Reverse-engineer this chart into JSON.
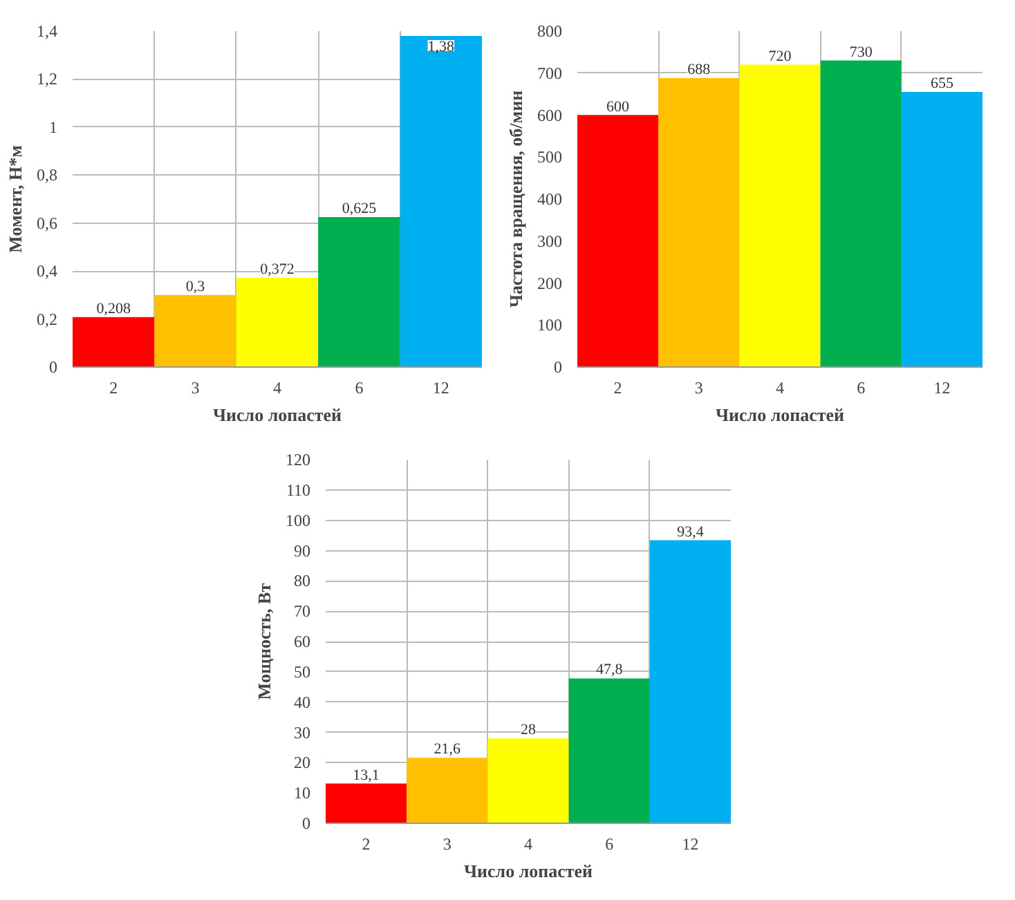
{
  "chart_data": [
    {
      "type": "bar",
      "xlabel": "Число лопастей",
      "ylabel": "Момент, Н*м",
      "categories": [
        "2",
        "3",
        "4",
        "6",
        "12"
      ],
      "values": [
        0.208,
        0.3,
        0.372,
        0.625,
        1.38
      ],
      "value_labels": [
        "0,208",
        "0,3",
        "0,372",
        "0,625",
        "1,38"
      ],
      "colors": [
        "#ff0000",
        "#ffc000",
        "#ffff00",
        "#00b050",
        "#00b0f0"
      ],
      "ylim": [
        0,
        1.4
      ],
      "yticks": [
        0,
        {
          "value": 0.2,
          "label": "0,2"
        },
        {
          "value": 0.4,
          "label": "0,4"
        },
        {
          "value": 0.6,
          "label": "0,6"
        },
        {
          "value": 0.8,
          "label": "0,8"
        },
        1,
        {
          "value": 1.2,
          "label": "1,2"
        },
        {
          "value": 1.4,
          "label": "1,4"
        }
      ],
      "grid": true
    },
    {
      "type": "bar",
      "xlabel": "Число лопастей",
      "ylabel": "Частота вращения, об/мин",
      "categories": [
        "2",
        "3",
        "4",
        "6",
        "12"
      ],
      "values": [
        600,
        688,
        720,
        730,
        655
      ],
      "data_labels": true,
      "colors": [
        "#ff0000",
        "#ffc000",
        "#ffff00",
        "#00b050",
        "#00b0f0"
      ],
      "ylim": [
        0,
        800
      ],
      "yticks": [
        0,
        100,
        200,
        300,
        400,
        500,
        600,
        700,
        800
      ],
      "grid": true
    },
    {
      "type": "bar",
      "xlabel": "Число лопастей",
      "ylabel": "Мощность, Вт",
      "categories": [
        "2",
        "3",
        "4",
        "6",
        "12"
      ],
      "values": [
        13.1,
        21.6,
        28,
        47.8,
        93.4
      ],
      "value_labels": [
        "13,1",
        "21,6",
        "28",
        "47,8",
        "93,4"
      ],
      "colors": [
        "#ff0000",
        "#ffc000",
        "#ffff00",
        "#00b050",
        "#00b0f0"
      ],
      "ylim": [
        0,
        120
      ],
      "yticks": [
        0,
        10,
        20,
        30,
        40,
        50,
        60,
        70,
        80,
        90,
        100,
        110,
        120
      ],
      "grid": true
    }
  ]
}
